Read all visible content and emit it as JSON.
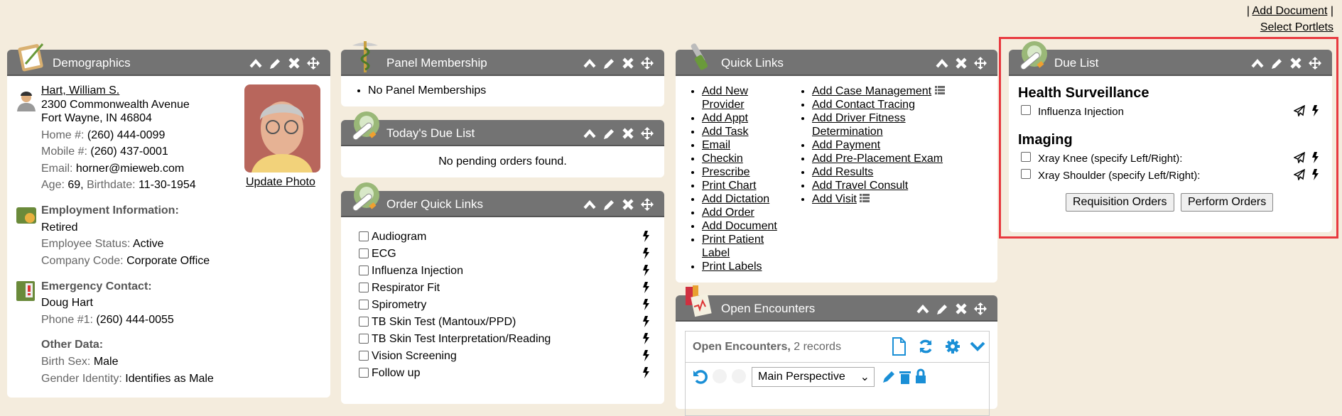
{
  "top_links": {
    "add_document": "Add Document",
    "select_portlets": "Select Portlets",
    "sep": "|"
  },
  "demographics": {
    "title": "Demographics",
    "name": "Hart, William S.",
    "address1": "2300 Commonwealth Avenue",
    "address2": "Fort Wayne, IN 46804",
    "home_label": "Home #:",
    "home": "(260) 444-0099",
    "mobile_label": "Mobile #:",
    "mobile": "(260) 437-0001",
    "email_label": "Email:",
    "email": "horner@mieweb.com",
    "age_label": "Age:",
    "age": "69,",
    "birth_label": "Birthdate:",
    "birthdate": "11-30-1954",
    "update_photo": "Update Photo",
    "employment_heading": "Employment Information:",
    "employment": "Retired",
    "status_label": "Employee Status:",
    "status": "Active",
    "company_label": "Company Code:",
    "company": "Corporate Office",
    "emergency_heading": "Emergency Contact:",
    "emergency_name": "Doug Hart",
    "phone_label": "Phone #1:",
    "phone": "(260) 444-0055",
    "other_heading": "Other Data:",
    "sex_label": "Birth Sex:",
    "sex": "Male",
    "gender_label": "Gender Identity:",
    "gender": "Identifies as Male"
  },
  "panel_membership": {
    "title": "Panel Membership",
    "item": "No Panel Memberships"
  },
  "todays_due_list": {
    "title": "Today's Due List",
    "message": "No pending orders found."
  },
  "order_quick_links": {
    "title": "Order Quick Links",
    "items": [
      "Audiogram",
      "ECG",
      "Influenza Injection",
      "Respirator Fit",
      "Spirometry",
      "TB Skin Test (Mantoux/PPD)",
      "TB Skin Test Interpretation/Reading",
      "Vision Screening",
      "Follow up"
    ]
  },
  "quick_links": {
    "title": "Quick Links",
    "left": [
      "Add New Provider",
      "Add Appt",
      "Add Task",
      "Email",
      "Checkin",
      "Prescribe",
      "Print Chart",
      "Add Dictation",
      "Add Order",
      "Add Document",
      "Print Patient Label",
      "Print Labels"
    ],
    "right": [
      "Add Case Management",
      "Add Contact Tracing",
      "Add Driver Fitness Determination",
      "Add Payment",
      "Add Pre-Placement Exam",
      "Add Results",
      "Add Travel Consult",
      "Add Visit"
    ],
    "right_with_list_icon": [
      0,
      7
    ]
  },
  "open_encounters": {
    "title": "Open Encounters",
    "grid_title": "Open Encounters,",
    "record_count": "2 records",
    "perspective": "Main Perspective"
  },
  "due_list": {
    "title": "Due List",
    "sections": [
      {
        "heading": "Health Surveillance",
        "items": [
          "Influenza Injection"
        ]
      },
      {
        "heading": "Imaging",
        "items": [
          "Xray Knee (specify Left/Right):",
          "Xray Shoulder (specify Left/Right):"
        ]
      }
    ],
    "requisition": "Requisition Orders",
    "perform": "Perform Orders"
  },
  "colors": {
    "background": "#f4ecdd",
    "header": "#737373",
    "accent_blue": "#1a8fd6",
    "highlight": "#e8393f"
  }
}
